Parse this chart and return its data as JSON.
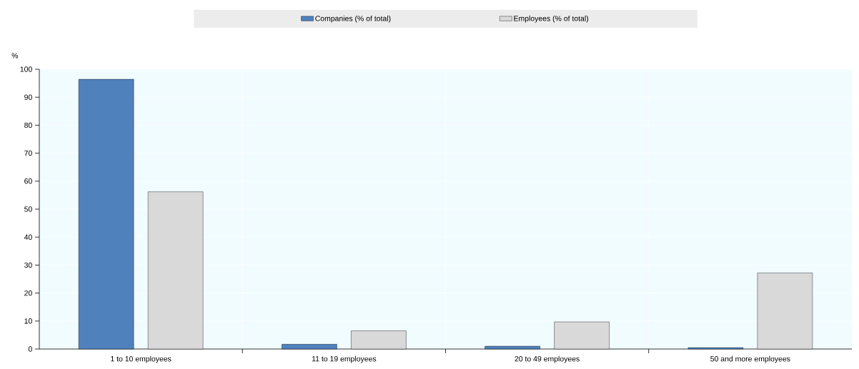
{
  "chart_data": {
    "type": "bar",
    "ylabel": "%",
    "categories": [
      "1 to 10 employees",
      "11 to 19 employees",
      "20 to 49 employees",
      "50 and more employees"
    ],
    "series": [
      {
        "name": "Companies (% of total)",
        "color": "#4f81bd",
        "values": [
          96.4,
          1.7,
          1.0,
          0.5
        ]
      },
      {
        "name": "Employees (% of total)",
        "color": "#d9d9d9",
        "values": [
          56.2,
          6.5,
          9.7,
          27.2
        ]
      }
    ],
    "ylim": [
      0,
      100
    ],
    "yticks": [
      0,
      10,
      20,
      30,
      40,
      50,
      60,
      70,
      80,
      90,
      100
    ],
    "grid": true,
    "legend": "top"
  }
}
